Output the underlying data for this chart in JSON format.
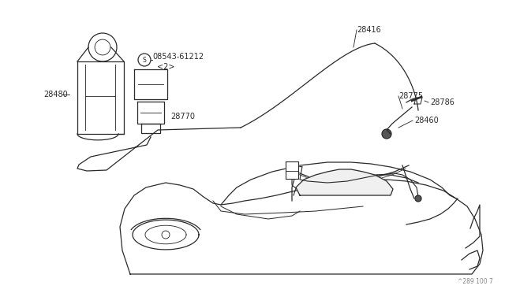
{
  "bg_color": "#ffffff",
  "line_color": "#2a2a2a",
  "text_color": "#2a2a2a",
  "figsize": [
    6.4,
    3.72
  ],
  "dpi": 100,
  "page_ref": "^289 100 7"
}
